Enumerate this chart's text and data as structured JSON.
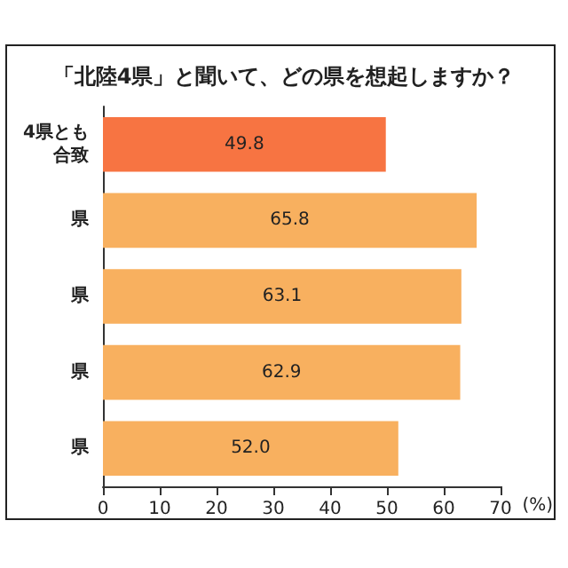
{
  "chart_data": {
    "type": "bar",
    "orientation": "horizontal",
    "title": "「北陸4県」と聞いて、どの県を想起しますか？",
    "xlabel": "(%)",
    "categories": [
      "4県とも合致",
      "県",
      "県",
      "県",
      "県"
    ],
    "values": [
      49.8,
      65.8,
      63.1,
      62.9,
      52.0
    ],
    "colors": [
      "#f77442",
      "#f8b05f",
      "#f8b05f",
      "#f8b05f",
      "#f8b05f"
    ],
    "value_labels": [
      "49.8",
      "65.8",
      "63.1",
      "62.9",
      "52.0"
    ],
    "xlim": [
      0,
      70
    ],
    "xticks": [
      0,
      10,
      20,
      30,
      40,
      50,
      60,
      70
    ],
    "grid": false
  }
}
